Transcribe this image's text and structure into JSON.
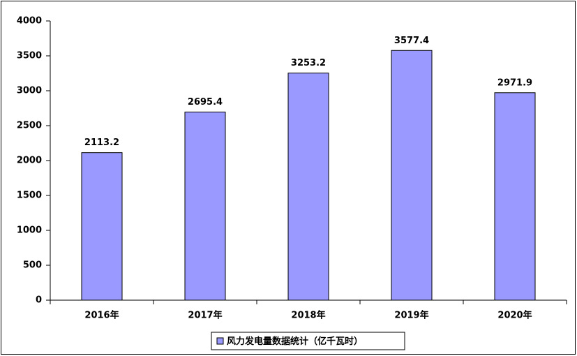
{
  "chart_data": {
    "type": "bar",
    "categories": [
      "2016年",
      "2017年",
      "2018年",
      "2019年",
      "2020年"
    ],
    "series": [
      {
        "name": "风力发电量数据统计（亿千瓦时）",
        "color": "#9999ff",
        "values": [
          2113.2,
          2695.4,
          3253.2,
          3577.4,
          2971.9
        ]
      }
    ],
    "ylim": [
      0,
      4000
    ],
    "yticks": [
      0,
      500,
      1000,
      1500,
      2000,
      2500,
      3000,
      3500,
      4000
    ],
    "grid": false,
    "legend": "bottom",
    "data_labels": true
  }
}
